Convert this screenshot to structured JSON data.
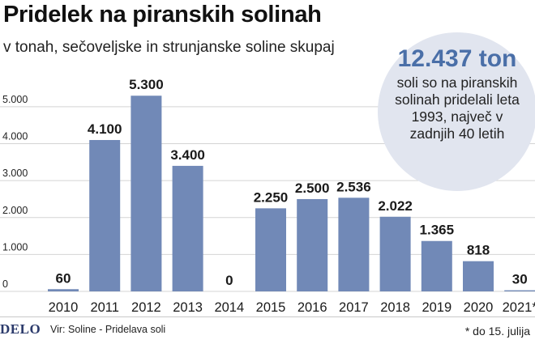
{
  "title": "Pridelek na piranskih solinah",
  "subtitle": "v tonah, sečoveljske in strunjanske soline skupaj",
  "callout": {
    "value": "12.437 ton",
    "text": "soli so na piranskih solinah pridelali leta 1993, največ v zadnjih 40 letih"
  },
  "footer": {
    "logo": "DELO",
    "source": "Vir: Soline - Pridelava soli",
    "footnote": "* do 15. julija"
  },
  "colors": {
    "bar": "#7189b7",
    "grid": "#d4d4d4",
    "callout_value": "#4a6fa8"
  },
  "chart_data": {
    "type": "bar",
    "categories": [
      "2010",
      "2011",
      "2012",
      "2013",
      "2014",
      "2015",
      "2016",
      "2017",
      "2018",
      "2019",
      "2020",
      "2021*"
    ],
    "values": [
      60,
      4100,
      5300,
      3400,
      0,
      2250,
      2500,
      2536,
      2022,
      1365,
      818,
      30
    ],
    "data_labels": [
      "60",
      "4.100",
      "5.300",
      "3.400",
      "0",
      "2.250",
      "2.500",
      "2.536",
      "2.022",
      "1.365",
      "818",
      "30"
    ],
    "yticks": [
      0,
      1000,
      2000,
      3000,
      4000,
      5000
    ],
    "ytick_labels": [
      "0",
      "1.000",
      "2.000",
      "3.000",
      "4.000",
      "5.000"
    ],
    "ylim": [
      0,
      5700
    ],
    "grid": true,
    "xlabel": "",
    "ylabel": ""
  }
}
